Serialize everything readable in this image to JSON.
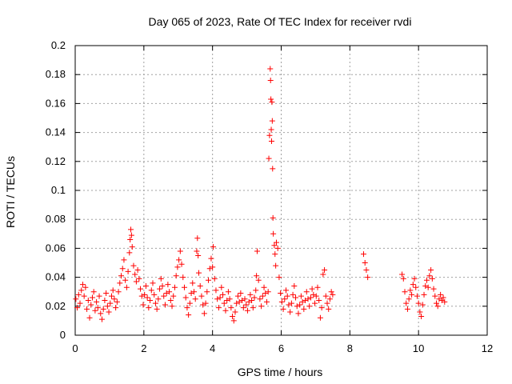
{
  "colors": {
    "series": "#ff0000",
    "axis": "#000000",
    "grid": "#a0a0a0"
  },
  "chart_data": {
    "type": "scatter",
    "title": "Day 065 of 2023, Rate Of TEC Index for receiver rvdi",
    "xlabel": "GPS time / hours",
    "ylabel": "ROTI / TECUs",
    "xlim": [
      0,
      12
    ],
    "ylim": [
      0,
      0.2
    ],
    "xticks": [
      0,
      2,
      4,
      6,
      8,
      10,
      12
    ],
    "xtick_labels": [
      "0",
      "2",
      "4",
      "6",
      "8",
      "10",
      "12"
    ],
    "yticks": [
      0,
      0.02,
      0.04,
      0.06,
      0.08,
      0.1,
      0.12,
      0.14,
      0.16,
      0.18,
      0.2
    ],
    "ytick_labels": [
      "0",
      "0.02",
      "0.04",
      "0.06",
      "0.08",
      "0.1",
      "0.12",
      "0.14",
      "0.16",
      "0.18",
      "0.2"
    ],
    "grid": true,
    "marker": "plus",
    "series": [
      {
        "name": "ROTI",
        "points": [
          [
            0.02,
            0.025
          ],
          [
            0.06,
            0.019
          ],
          [
            0.1,
            0.028
          ],
          [
            0.14,
            0.022
          ],
          [
            0.18,
            0.031
          ],
          [
            0.22,
            0.035
          ],
          [
            0.26,
            0.027
          ],
          [
            0.3,
            0.033
          ],
          [
            0.34,
            0.018
          ],
          [
            0.38,
            0.024
          ],
          [
            0.42,
            0.012
          ],
          [
            0.46,
            0.021
          ],
          [
            0.5,
            0.026
          ],
          [
            0.54,
            0.03
          ],
          [
            0.58,
            0.017
          ],
          [
            0.62,
            0.023
          ],
          [
            0.66,
            0.019
          ],
          [
            0.7,
            0.027
          ],
          [
            0.74,
            0.015
          ],
          [
            0.78,
            0.011
          ],
          [
            0.82,
            0.018
          ],
          [
            0.86,
            0.024
          ],
          [
            0.9,
            0.029
          ],
          [
            0.94,
            0.02
          ],
          [
            0.98,
            0.016
          ],
          [
            1.02,
            0.022
          ],
          [
            1.06,
            0.027
          ],
          [
            1.1,
            0.031
          ],
          [
            1.14,
            0.025
          ],
          [
            1.18,
            0.019
          ],
          [
            1.22,
            0.023
          ],
          [
            1.26,
            0.03
          ],
          [
            1.3,
            0.036
          ],
          [
            1.34,
            0.041
          ],
          [
            1.38,
            0.046
          ],
          [
            1.42,
            0.052
          ],
          [
            1.46,
            0.038
          ],
          [
            1.5,
            0.033
          ],
          [
            1.54,
            0.044
          ],
          [
            1.58,
            0.057
          ],
          [
            1.6,
            0.066
          ],
          [
            1.62,
            0.073
          ],
          [
            1.64,
            0.069
          ],
          [
            1.66,
            0.061
          ],
          [
            1.7,
            0.048
          ],
          [
            1.74,
            0.042
          ],
          [
            1.78,
            0.037
          ],
          [
            1.82,
            0.045
          ],
          [
            1.86,
            0.039
          ],
          [
            1.9,
            0.032
          ],
          [
            1.94,
            0.027
          ],
          [
            1.98,
            0.021
          ],
          [
            2.02,
            0.028
          ],
          [
            2.06,
            0.034
          ],
          [
            2.1,
            0.026
          ],
          [
            2.14,
            0.019
          ],
          [
            2.18,
            0.024
          ],
          [
            2.22,
            0.031
          ],
          [
            2.26,
            0.036
          ],
          [
            2.3,
            0.028
          ],
          [
            2.34,
            0.022
          ],
          [
            2.38,
            0.018
          ],
          [
            2.42,
            0.025
          ],
          [
            2.46,
            0.032
          ],
          [
            2.5,
            0.039
          ],
          [
            2.54,
            0.034
          ],
          [
            2.58,
            0.027
          ],
          [
            2.62,
            0.021
          ],
          [
            2.66,
            0.029
          ],
          [
            2.7,
            0.035
          ],
          [
            2.74,
            0.03
          ],
          [
            2.78,
            0.024
          ],
          [
            2.82,
            0.02
          ],
          [
            2.86,
            0.027
          ],
          [
            2.9,
            0.033
          ],
          [
            2.94,
            0.041
          ],
          [
            2.98,
            0.047
          ],
          [
            3.02,
            0.052
          ],
          [
            3.06,
            0.058
          ],
          [
            3.1,
            0.049
          ],
          [
            3.14,
            0.04
          ],
          [
            3.18,
            0.033
          ],
          [
            3.22,
            0.026
          ],
          [
            3.26,
            0.019
          ],
          [
            3.3,
            0.014
          ],
          [
            3.34,
            0.022
          ],
          [
            3.38,
            0.029
          ],
          [
            3.42,
            0.036
          ],
          [
            3.46,
            0.03
          ],
          [
            3.5,
            0.025
          ],
          [
            3.54,
            0.058
          ],
          [
            3.56,
            0.067
          ],
          [
            3.58,
            0.055
          ],
          [
            3.6,
            0.043
          ],
          [
            3.64,
            0.034
          ],
          [
            3.68,
            0.027
          ],
          [
            3.72,
            0.021
          ],
          [
            3.76,
            0.015
          ],
          [
            3.8,
            0.022
          ],
          [
            3.84,
            0.03
          ],
          [
            3.88,
            0.038
          ],
          [
            3.92,
            0.046
          ],
          [
            3.96,
            0.053
          ],
          [
            4.0,
            0.047
          ],
          [
            4.02,
            0.061
          ],
          [
            4.06,
            0.039
          ],
          [
            4.1,
            0.031
          ],
          [
            4.14,
            0.025
          ],
          [
            4.18,
            0.019
          ],
          [
            4.22,
            0.026
          ],
          [
            4.26,
            0.033
          ],
          [
            4.3,
            0.028
          ],
          [
            4.34,
            0.022
          ],
          [
            4.38,
            0.017
          ],
          [
            4.42,
            0.024
          ],
          [
            4.46,
            0.03
          ],
          [
            4.5,
            0.025
          ],
          [
            4.54,
            0.019
          ],
          [
            4.58,
            0.013
          ],
          [
            4.62,
            0.01
          ],
          [
            4.66,
            0.016
          ],
          [
            4.7,
            0.022
          ],
          [
            4.74,
            0.027
          ],
          [
            4.78,
            0.023
          ],
          [
            4.82,
            0.029
          ],
          [
            4.86,
            0.024
          ],
          [
            4.9,
            0.019
          ],
          [
            4.94,
            0.025
          ],
          [
            4.98,
            0.021
          ],
          [
            5.02,
            0.017
          ],
          [
            5.06,
            0.023
          ],
          [
            5.1,
            0.028
          ],
          [
            5.14,
            0.024
          ],
          [
            5.18,
            0.019
          ],
          [
            5.22,
            0.026
          ],
          [
            5.26,
            0.031
          ],
          [
            5.28,
            0.041
          ],
          [
            5.3,
            0.058
          ],
          [
            5.34,
            0.038
          ],
          [
            5.38,
            0.025
          ],
          [
            5.42,
            0.02
          ],
          [
            5.46,
            0.027
          ],
          [
            5.5,
            0.033
          ],
          [
            5.54,
            0.029
          ],
          [
            5.58,
            0.023
          ],
          [
            5.62,
            0.03
          ],
          [
            5.64,
            0.122
          ],
          [
            5.66,
            0.138
          ],
          [
            5.68,
            0.184
          ],
          [
            5.69,
            0.176
          ],
          [
            5.7,
            0.163
          ],
          [
            5.71,
            0.142
          ],
          [
            5.72,
            0.134
          ],
          [
            5.73,
            0.161
          ],
          [
            5.74,
            0.148
          ],
          [
            5.75,
            0.115
          ],
          [
            5.76,
            0.081
          ],
          [
            5.77,
            0.07
          ],
          [
            5.8,
            0.062
          ],
          [
            5.82,
            0.056
          ],
          [
            5.84,
            0.048
          ],
          [
            5.86,
            0.064
          ],
          [
            5.9,
            0.06
          ],
          [
            5.94,
            0.04
          ],
          [
            5.98,
            0.029
          ],
          [
            6.02,
            0.023
          ],
          [
            6.06,
            0.018
          ],
          [
            6.1,
            0.025
          ],
          [
            6.14,
            0.031
          ],
          [
            6.18,
            0.027
          ],
          [
            6.22,
            0.021
          ],
          [
            6.26,
            0.016
          ],
          [
            6.3,
            0.022
          ],
          [
            6.34,
            0.028
          ],
          [
            6.38,
            0.034
          ],
          [
            6.42,
            0.026
          ],
          [
            6.46,
            0.02
          ],
          [
            6.5,
            0.015
          ],
          [
            6.54,
            0.021
          ],
          [
            6.58,
            0.027
          ],
          [
            6.62,
            0.023
          ],
          [
            6.66,
            0.018
          ],
          [
            6.7,
            0.024
          ],
          [
            6.74,
            0.03
          ],
          [
            6.78,
            0.025
          ],
          [
            6.82,
            0.02
          ],
          [
            6.86,
            0.026
          ],
          [
            6.9,
            0.032
          ],
          [
            6.94,
            0.028
          ],
          [
            6.98,
            0.022
          ],
          [
            7.02,
            0.027
          ],
          [
            7.06,
            0.033
          ],
          [
            7.1,
            0.024
          ],
          [
            7.14,
            0.012
          ],
          [
            7.18,
            0.019
          ],
          [
            7.22,
            0.042
          ],
          [
            7.26,
            0.045
          ],
          [
            7.3,
            0.027
          ],
          [
            7.34,
            0.022
          ],
          [
            7.38,
            0.018
          ],
          [
            7.42,
            0.025
          ],
          [
            7.46,
            0.03
          ],
          [
            7.5,
            0.028
          ],
          [
            8.4,
            0.056
          ],
          [
            8.44,
            0.05
          ],
          [
            8.48,
            0.045
          ],
          [
            8.52,
            0.04
          ],
          [
            9.52,
            0.042
          ],
          [
            9.56,
            0.039
          ],
          [
            9.6,
            0.03
          ],
          [
            9.64,
            0.022
          ],
          [
            9.68,
            0.018
          ],
          [
            9.72,
            0.025
          ],
          [
            9.76,
            0.031
          ],
          [
            9.8,
            0.028
          ],
          [
            9.84,
            0.035
          ],
          [
            9.88,
            0.039
          ],
          [
            9.92,
            0.033
          ],
          [
            9.96,
            0.027
          ],
          [
            10.0,
            0.022
          ],
          [
            10.04,
            0.016
          ],
          [
            10.08,
            0.013
          ],
          [
            10.12,
            0.021
          ],
          [
            10.16,
            0.028
          ],
          [
            10.2,
            0.034
          ],
          [
            10.24,
            0.038
          ],
          [
            10.28,
            0.033
          ],
          [
            10.32,
            0.041
          ],
          [
            10.36,
            0.045
          ],
          [
            10.4,
            0.039
          ],
          [
            10.44,
            0.032
          ],
          [
            10.48,
            0.027
          ],
          [
            10.52,
            0.022
          ],
          [
            10.56,
            0.02
          ],
          [
            10.6,
            0.025
          ],
          [
            10.64,
            0.028
          ],
          [
            10.68,
            0.024
          ],
          [
            10.72,
            0.026
          ],
          [
            10.76,
            0.023
          ]
        ]
      }
    ]
  }
}
